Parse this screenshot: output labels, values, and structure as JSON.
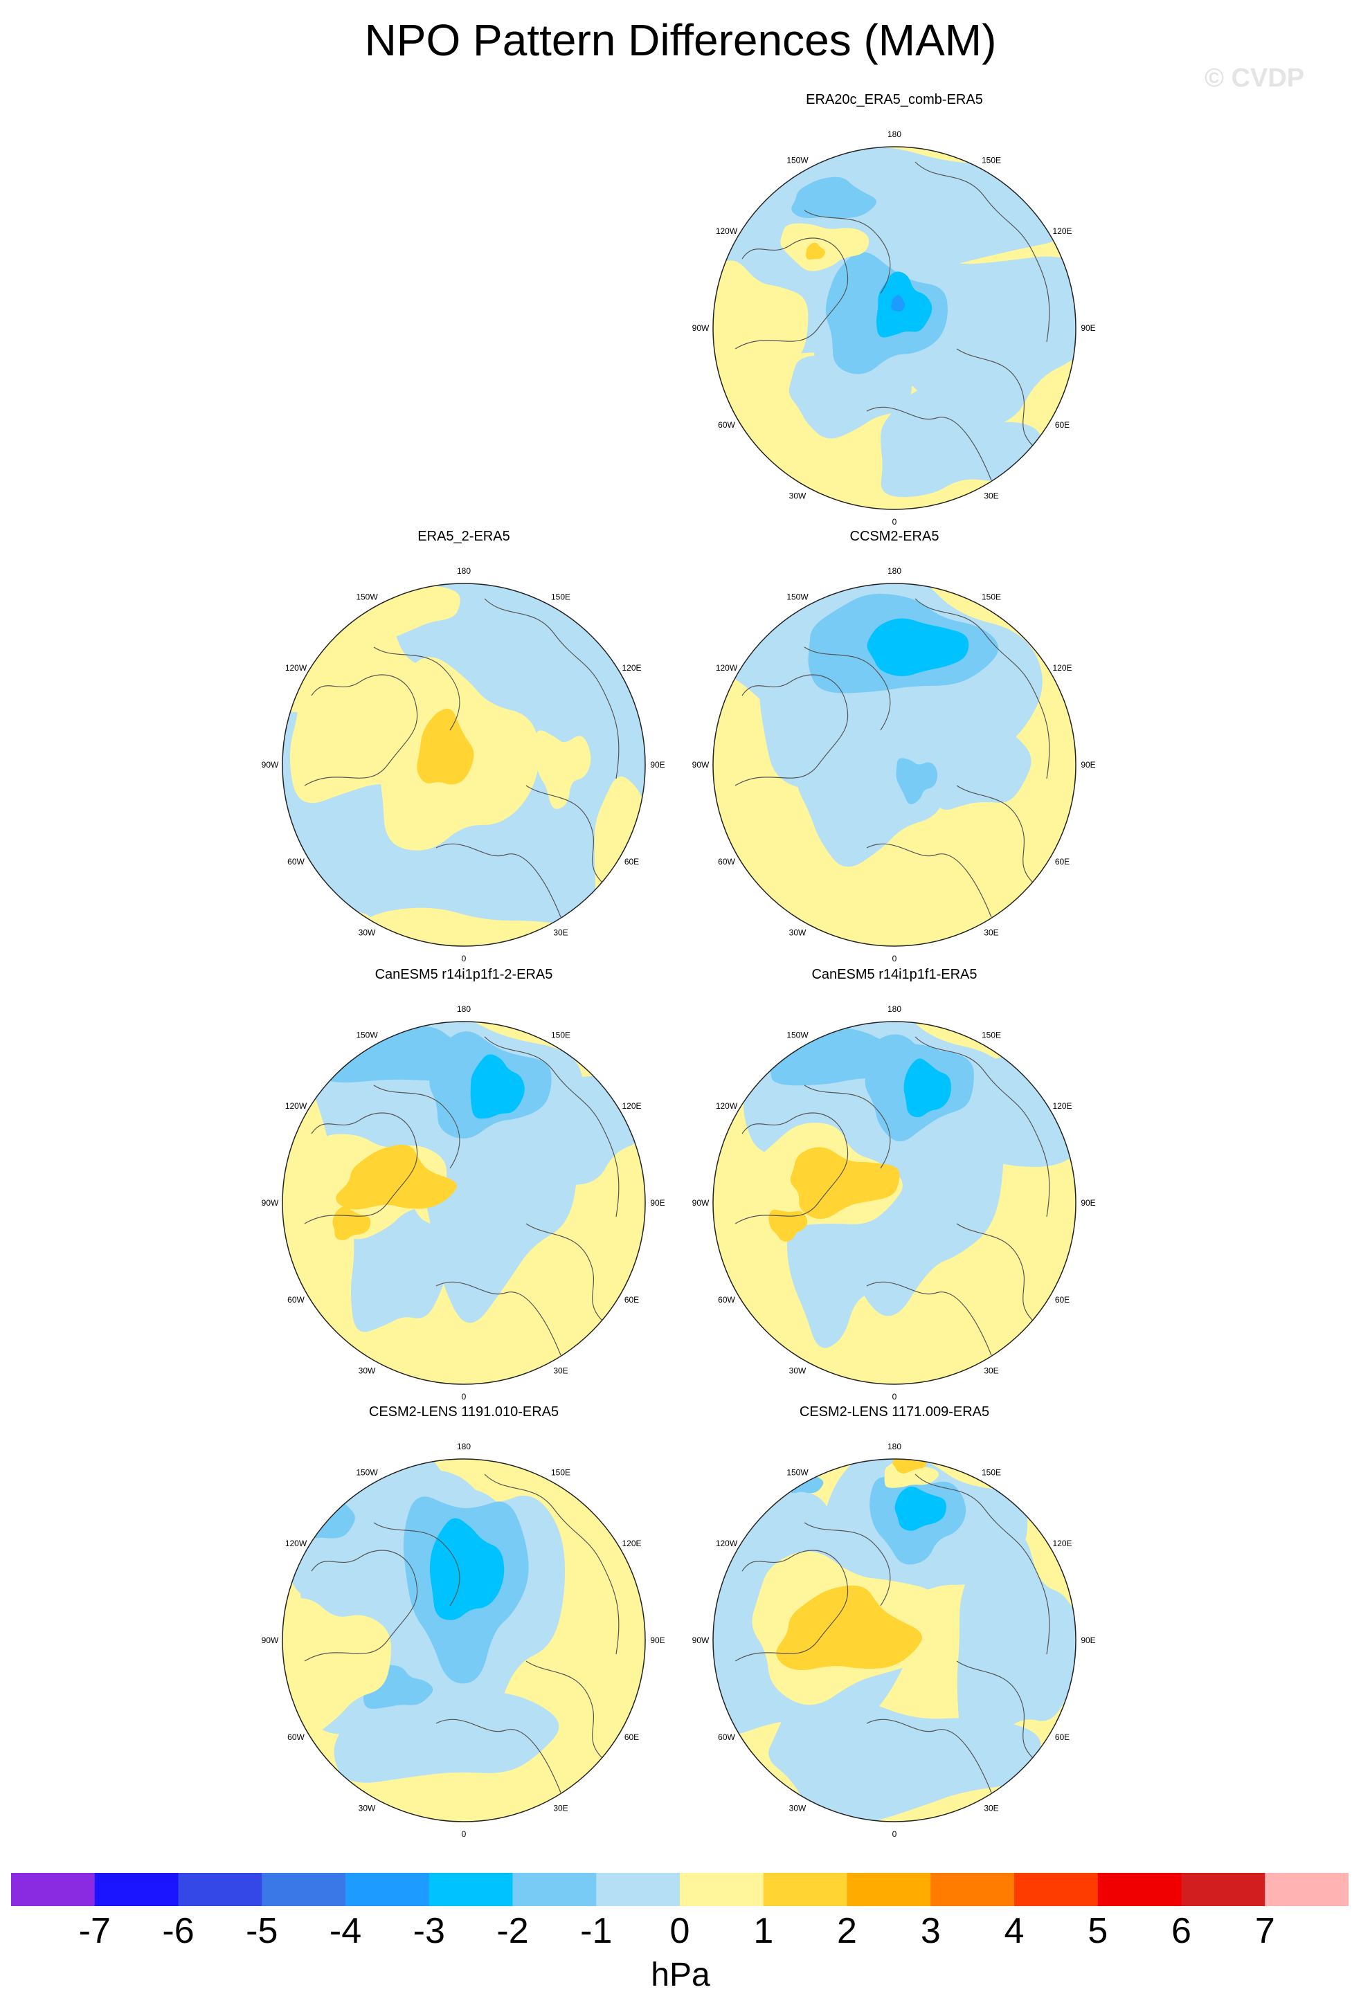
{
  "title": "NPO Pattern Differences (MAM)",
  "watermark": "© CVDP",
  "colors": {
    "negative": [
      "#8a2be2",
      "#1a14ff",
      "#3348e6",
      "#3a78e8",
      "#1e9bff",
      "#00c2ff",
      "#78cbf5",
      "#b4dff5"
    ],
    "positive": [
      "#fff59a",
      "#ffd433",
      "#ffab00",
      "#ff7c00",
      "#ff3c00",
      "#f00000",
      "#d21e1e",
      "#ffb3b3"
    ],
    "coast": "#555555",
    "circle": "#222222"
  },
  "longitude_labels": [
    "180",
    "150E",
    "120E",
    "90E",
    "60E",
    "30E",
    "0",
    "30W",
    "60W",
    "90W",
    "120W",
    "150W"
  ],
  "panels": [
    {
      "title": "ERA20c_ERA5_comb-ERA5",
      "background": "yellow",
      "features": "pan1"
    },
    {
      "title": "ERA5_2-ERA5",
      "background": "blue",
      "features": "pan2"
    },
    {
      "title": "CCSM2-ERA5",
      "background": "yellow",
      "features": "pan3"
    },
    {
      "title": "CanESM5 r14i1p1f1-2-ERA5",
      "background": "yellow",
      "features": "pan4"
    },
    {
      "title": "CanESM5 r14i1p1f1-ERA5",
      "background": "yellow",
      "features": "pan5"
    },
    {
      "title": "CESM2-LENS 1191.010-ERA5",
      "background": "yellow",
      "features": "pan6"
    },
    {
      "title": "CESM2-LENS 1171.009-ERA5",
      "background": "yellow",
      "features": "pan7"
    }
  ],
  "colorbar": {
    "levels": [
      "-7",
      "-6",
      "-5",
      "-4",
      "-3",
      "-2",
      "-1",
      "0",
      "1",
      "2",
      "3",
      "4",
      "5",
      "6",
      "7"
    ],
    "colors": [
      "#8a2be2",
      "#1a14ff",
      "#3348e6",
      "#3a78e8",
      "#1e9bff",
      "#00c2ff",
      "#78cbf5",
      "#b4dff5",
      "#fff59a",
      "#ffd433",
      "#ffab00",
      "#ff7c00",
      "#ff3c00",
      "#f00000",
      "#d21e1e",
      "#ffb3b3"
    ],
    "units": "hPa"
  }
}
